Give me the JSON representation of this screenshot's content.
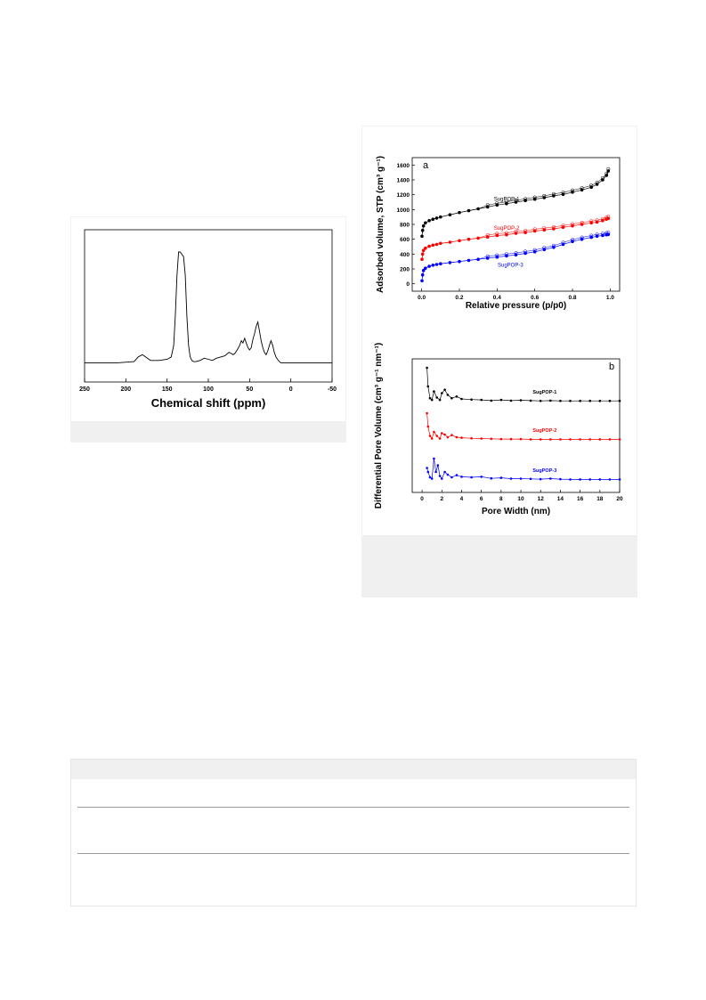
{
  "chart_data": [
    {
      "type": "line",
      "xlabel": "Chemical shift (ppm)",
      "ylabel": "",
      "xlim": [
        250,
        -50
      ],
      "xticks": [
        250,
        200,
        150,
        100,
        50,
        0,
        -50
      ],
      "grid": false,
      "series": [
        {
          "name": "",
          "color": "#000000",
          "x": [
            250,
            230,
            210,
            190,
            185,
            180,
            170,
            160,
            150,
            145,
            142,
            140,
            138,
            136,
            134,
            132,
            130,
            128,
            126,
            124,
            122,
            120,
            118,
            115,
            110,
            105,
            100,
            95,
            90,
            85,
            80,
            75,
            72,
            70,
            68,
            65,
            62,
            60,
            58,
            56,
            54,
            52,
            50,
            48,
            46,
            44,
            42,
            40,
            38,
            36,
            34,
            32,
            30,
            28,
            26,
            24,
            22,
            20,
            18,
            16,
            14,
            12,
            10,
            5,
            0,
            -10,
            -20,
            -30,
            -40,
            -50
          ],
          "y": [
            0.05,
            0.05,
            0.05,
            0.06,
            0.1,
            0.12,
            0.07,
            0.07,
            0.08,
            0.1,
            0.2,
            0.45,
            0.8,
            1.0,
            1.0,
            0.98,
            0.96,
            0.8,
            0.45,
            0.2,
            0.1,
            0.07,
            0.06,
            0.06,
            0.07,
            0.09,
            0.08,
            0.07,
            0.09,
            0.1,
            0.11,
            0.14,
            0.13,
            0.12,
            0.13,
            0.16,
            0.2,
            0.24,
            0.22,
            0.26,
            0.22,
            0.18,
            0.16,
            0.18,
            0.25,
            0.3,
            0.36,
            0.4,
            0.32,
            0.24,
            0.18,
            0.14,
            0.12,
            0.15,
            0.2,
            0.24,
            0.2,
            0.14,
            0.1,
            0.08,
            0.06,
            0.05,
            0.05,
            0.05,
            0.05,
            0.05,
            0.05,
            0.05,
            0.05,
            0.05
          ]
        }
      ]
    },
    {
      "type": "scatter",
      "panel_label": "a",
      "xlabel": "Relative pressure (p/p0)",
      "ylabel": "Adsorbed volume, STP (cm³ g⁻¹)",
      "xlim": [
        0,
        1.0
      ],
      "xticks": [
        0.0,
        0.2,
        0.4,
        0.6,
        0.8,
        1.0
      ],
      "ylim": [
        0,
        1600
      ],
      "yticks": [
        0,
        200,
        400,
        600,
        800,
        1000,
        1200,
        1400,
        1600
      ],
      "series": [
        {
          "name": "SugPOP-1",
          "color": "#000000",
          "x": [
            0.002,
            0.005,
            0.01,
            0.02,
            0.04,
            0.06,
            0.08,
            0.1,
            0.15,
            0.2,
            0.25,
            0.3,
            0.35,
            0.4,
            0.45,
            0.5,
            0.55,
            0.6,
            0.65,
            0.7,
            0.75,
            0.8,
            0.85,
            0.9,
            0.93,
            0.96,
            0.98,
            0.99
          ],
          "y": [
            640,
            720,
            780,
            820,
            850,
            870,
            885,
            900,
            930,
            960,
            985,
            1010,
            1035,
            1060,
            1080,
            1100,
            1120,
            1140,
            1160,
            1185,
            1205,
            1235,
            1265,
            1300,
            1340,
            1400,
            1460,
            1520
          ]
        },
        {
          "name": "SugPOP-2",
          "color": "#ff0000",
          "x": [
            0.002,
            0.005,
            0.01,
            0.02,
            0.04,
            0.06,
            0.08,
            0.1,
            0.15,
            0.2,
            0.25,
            0.3,
            0.35,
            0.4,
            0.45,
            0.5,
            0.55,
            0.6,
            0.65,
            0.7,
            0.75,
            0.8,
            0.85,
            0.9,
            0.93,
            0.96,
            0.98,
            0.99
          ],
          "y": [
            330,
            400,
            450,
            480,
            505,
            520,
            530,
            545,
            560,
            580,
            600,
            615,
            630,
            650,
            660,
            680,
            690,
            710,
            725,
            740,
            760,
            780,
            800,
            820,
            830,
            850,
            870,
            880
          ]
        },
        {
          "name": "SugPOP-3",
          "color": "#0000ff",
          "x": [
            0.002,
            0.005,
            0.01,
            0.02,
            0.04,
            0.06,
            0.08,
            0.1,
            0.15,
            0.2,
            0.25,
            0.3,
            0.35,
            0.4,
            0.45,
            0.5,
            0.55,
            0.6,
            0.65,
            0.7,
            0.75,
            0.8,
            0.85,
            0.9,
            0.93,
            0.96,
            0.98,
            0.99
          ],
          "y": [
            40,
            120,
            180,
            210,
            235,
            250,
            260,
            270,
            285,
            300,
            315,
            330,
            345,
            360,
            375,
            390,
            410,
            430,
            460,
            490,
            530,
            570,
            600,
            625,
            640,
            650,
            660,
            665
          ]
        }
      ]
    },
    {
      "type": "line",
      "panel_label": "b",
      "xlabel": "Pore Width (nm)",
      "ylabel": "Differential Pore Volume (cm³ g⁻¹ nm⁻¹)",
      "xlim": [
        -1,
        20
      ],
      "xticks": [
        0,
        2,
        4,
        6,
        8,
        10,
        12,
        14,
        16,
        18,
        20
      ],
      "series": [
        {
          "name": "SugPOP-1",
          "color": "#000000",
          "x": [
            0.5,
            0.6,
            0.8,
            1.0,
            1.2,
            1.5,
            1.8,
            2.0,
            2.3,
            2.6,
            3.0,
            3.5,
            4.0,
            5,
            6,
            7,
            8,
            9,
            10,
            11,
            12,
            13,
            14,
            15,
            16,
            17,
            18,
            19,
            20
          ],
          "y": [
            1.0,
            0.45,
            0.1,
            0.05,
            0.3,
            0.12,
            0.05,
            0.25,
            0.35,
            0.2,
            0.1,
            0.15,
            0.08,
            0.06,
            0.05,
            0.03,
            0.05,
            0.03,
            0.04,
            0.03,
            0.02,
            0.03,
            0.02,
            0.02,
            0.02,
            0.02,
            0.02,
            0.02,
            0.02
          ]
        },
        {
          "name": "SugPOP-2",
          "color": "#ff0000",
          "x": [
            0.5,
            0.6,
            0.8,
            1.0,
            1.2,
            1.5,
            1.8,
            2.0,
            2.3,
            2.6,
            3.0,
            3.5,
            4.0,
            5,
            6,
            7,
            8,
            9,
            10,
            11,
            12,
            13,
            14,
            15,
            16,
            17,
            18,
            19,
            20
          ],
          "y": [
            1.0,
            0.5,
            0.15,
            0.05,
            0.3,
            0.15,
            0.05,
            0.25,
            0.2,
            0.1,
            0.18,
            0.1,
            0.08,
            0.06,
            0.05,
            0.04,
            0.03,
            0.03,
            0.03,
            0.02,
            0.02,
            0.02,
            0.02,
            0.02,
            0.02,
            0.02,
            0.02,
            0.02,
            0.02
          ]
        },
        {
          "name": "SugPOP-3",
          "color": "#0000ff",
          "x": [
            0.5,
            0.6,
            0.8,
            1.0,
            1.2,
            1.4,
            1.6,
            1.8,
            2.0,
            2.3,
            2.6,
            3.0,
            3.5,
            4.0,
            5,
            6,
            7,
            8,
            9,
            10,
            11,
            12,
            13,
            14,
            15,
            16,
            17,
            18,
            19,
            20
          ],
          "y": [
            0.45,
            0.3,
            0.1,
            0.05,
            0.8,
            0.3,
            0.55,
            0.15,
            0.05,
            0.3,
            0.2,
            0.1,
            0.18,
            0.12,
            0.1,
            0.12,
            0.06,
            0.08,
            0.05,
            0.05,
            0.04,
            0.03,
            0.05,
            0.03,
            0.02,
            0.02,
            0.02,
            0.02,
            0.02,
            0.02
          ]
        }
      ]
    }
  ],
  "table": {
    "header": "",
    "rows": [
      "",
      "",
      ""
    ]
  }
}
